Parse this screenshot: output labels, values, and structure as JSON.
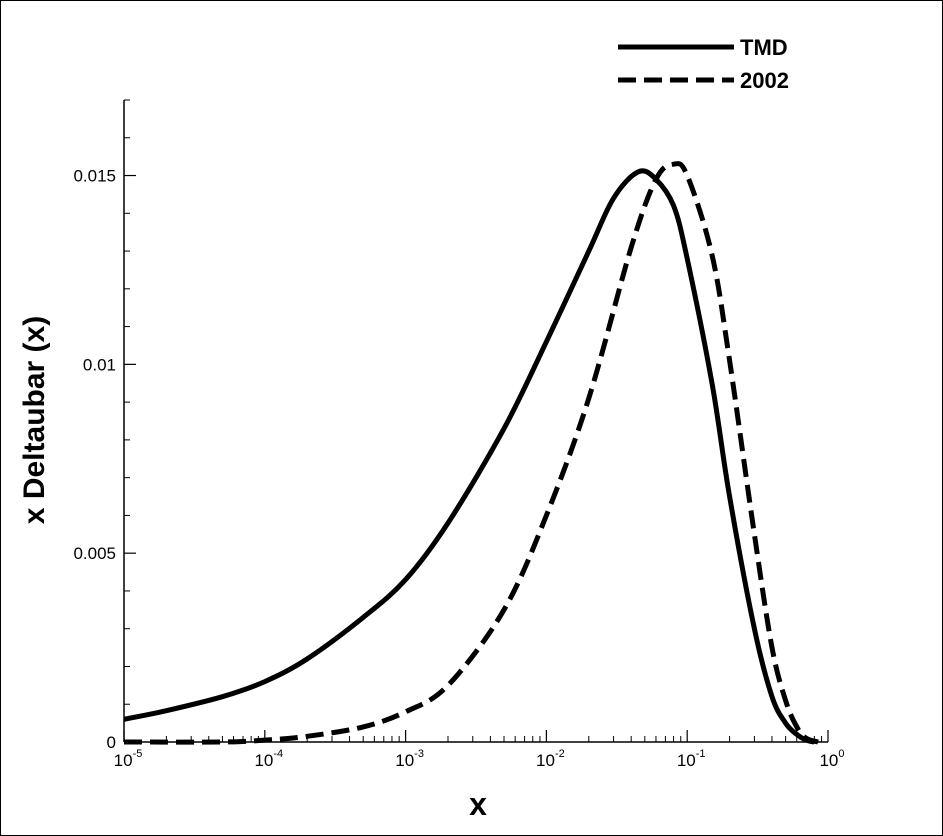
{
  "chart_data": {
    "type": "line",
    "title": "",
    "xlabel": "x",
    "ylabel": "x Deltaubar (x)",
    "xscale": "log",
    "xlim": [
      1e-05,
      1
    ],
    "ylim": [
      0,
      0.017
    ],
    "x_ticks": [
      {
        "value": 1e-05,
        "base": "10",
        "exp": "-5"
      },
      {
        "value": 0.0001,
        "base": "10",
        "exp": "-4"
      },
      {
        "value": 0.001,
        "base": "10",
        "exp": "-3"
      },
      {
        "value": 0.01,
        "base": "10",
        "exp": "-2"
      },
      {
        "value": 0.1,
        "base": "10",
        "exp": "-1"
      },
      {
        "value": 1,
        "base": "10",
        "exp": "0"
      }
    ],
    "y_ticks": [
      {
        "value": 0,
        "label": "0"
      },
      {
        "value": 0.005,
        "label": "0.005"
      },
      {
        "value": 0.01,
        "label": "0.01"
      },
      {
        "value": 0.015,
        "label": "0.015"
      }
    ],
    "grid": false,
    "legend_position": "top-right",
    "series": [
      {
        "name": "TMD",
        "style": "solid",
        "color": "#000000",
        "x": [
          1e-05,
          2e-05,
          5e-05,
          0.0001,
          0.0002,
          0.0005,
          0.001,
          0.002,
          0.005,
          0.01,
          0.02,
          0.03,
          0.045,
          0.06,
          0.08,
          0.1,
          0.15,
          0.2,
          0.3,
          0.4,
          0.5,
          0.6,
          0.7,
          0.8
        ],
        "y": [
          0.0006,
          0.00083,
          0.0012,
          0.0016,
          0.0022,
          0.0033,
          0.0043,
          0.0058,
          0.0083,
          0.0106,
          0.013,
          0.0144,
          0.0151,
          0.0149,
          0.0142,
          0.0128,
          0.0095,
          0.0065,
          0.003,
          0.0012,
          0.0005,
          0.0002,
          5e-05,
          0.0
        ]
      },
      {
        "name": "2002",
        "style": "dashed",
        "color": "#000000",
        "x": [
          1e-05,
          5e-05,
          0.0001,
          0.0002,
          0.0005,
          0.001,
          0.002,
          0.005,
          0.01,
          0.02,
          0.04,
          0.06,
          0.08,
          0.1,
          0.15,
          0.2,
          0.3,
          0.4,
          0.5,
          0.6,
          0.7,
          0.85
        ],
        "y": [
          0.0,
          0.0,
          5e-05,
          0.00015,
          0.0004,
          0.0008,
          0.0015,
          0.0035,
          0.006,
          0.0091,
          0.0131,
          0.0149,
          0.0153,
          0.015,
          0.0129,
          0.0101,
          0.0055,
          0.0025,
          0.0011,
          0.0004,
          0.0001,
          0.0
        ]
      }
    ]
  }
}
